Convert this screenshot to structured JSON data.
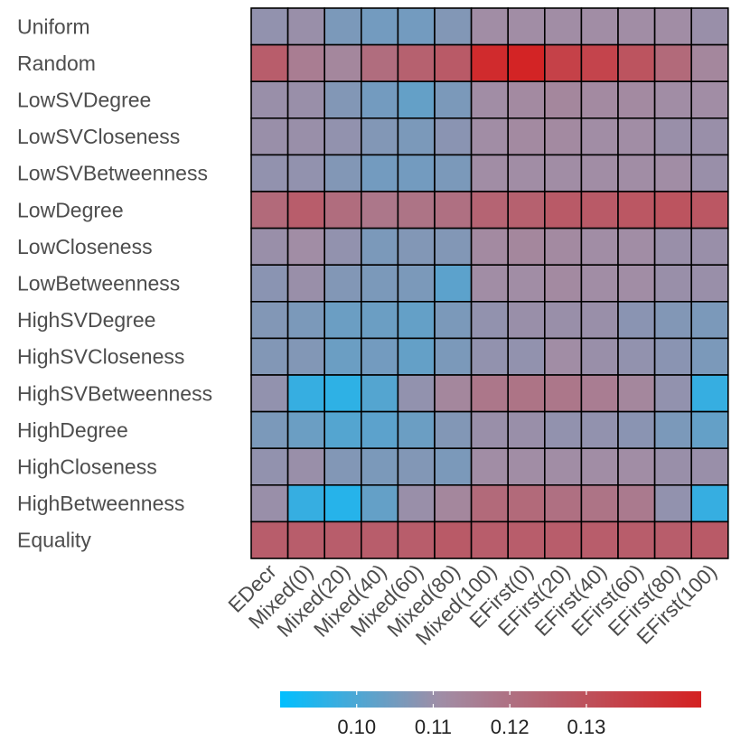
{
  "chart_data": {
    "type": "heatmap",
    "rows": [
      "Uniform",
      "Random",
      "LowSVDegree",
      "LowSVCloseness",
      "LowSVBetweenness",
      "LowDegree",
      "LowCloseness",
      "LowBetweenness",
      "HighSVDegree",
      "HighSVCloseness",
      "HighSVBetweenness",
      "HighDegree",
      "HighCloseness",
      "HighBetweenness",
      "Equality"
    ],
    "columns": [
      "EDecr",
      "Mixed(0)",
      "Mixed(20)",
      "Mixed(40)",
      "Mixed(60)",
      "Mixed(80)",
      "Mixed(100)",
      "EFirst(0)",
      "EFirst(20)",
      "EFirst(40)",
      "EFirst(60)",
      "EFirst(80)",
      "EFirst(100)"
    ],
    "values": [
      [
        0.109,
        0.11,
        0.106,
        0.105,
        0.105,
        0.107,
        0.111,
        0.111,
        0.111,
        0.111,
        0.111,
        0.111,
        0.11
      ],
      [
        0.126,
        0.116,
        0.113,
        0.121,
        0.125,
        0.127,
        0.142,
        0.144,
        0.135,
        0.134,
        0.129,
        0.122,
        0.113
      ],
      [
        0.11,
        0.11,
        0.107,
        0.105,
        0.103,
        0.106,
        0.111,
        0.112,
        0.113,
        0.112,
        0.112,
        0.111,
        0.111
      ],
      [
        0.11,
        0.11,
        0.109,
        0.107,
        0.106,
        0.108,
        0.111,
        0.112,
        0.112,
        0.111,
        0.111,
        0.11,
        0.11
      ],
      [
        0.109,
        0.109,
        0.107,
        0.105,
        0.105,
        0.106,
        0.111,
        0.111,
        0.111,
        0.111,
        0.111,
        0.111,
        0.11
      ],
      [
        0.122,
        0.126,
        0.121,
        0.118,
        0.119,
        0.12,
        0.124,
        0.125,
        0.127,
        0.127,
        0.128,
        0.129,
        0.128
      ],
      [
        0.11,
        0.111,
        0.109,
        0.106,
        0.107,
        0.107,
        0.112,
        0.113,
        0.112,
        0.111,
        0.111,
        0.11,
        0.11
      ],
      [
        0.108,
        0.11,
        0.107,
        0.106,
        0.106,
        0.102,
        0.111,
        0.111,
        0.112,
        0.111,
        0.111,
        0.11,
        0.11
      ],
      [
        0.107,
        0.106,
        0.104,
        0.104,
        0.103,
        0.106,
        0.109,
        0.11,
        0.11,
        0.11,
        0.108,
        0.107,
        0.106
      ],
      [
        0.107,
        0.107,
        0.104,
        0.105,
        0.103,
        0.106,
        0.109,
        0.109,
        0.111,
        0.11,
        0.109,
        0.108,
        0.106
      ],
      [
        0.109,
        0.097,
        0.096,
        0.101,
        0.109,
        0.113,
        0.118,
        0.119,
        0.118,
        0.116,
        0.113,
        0.109,
        0.097
      ],
      [
        0.106,
        0.104,
        0.101,
        0.102,
        0.104,
        0.107,
        0.11,
        0.11,
        0.109,
        0.109,
        0.108,
        0.106,
        0.103
      ],
      [
        0.109,
        0.11,
        0.107,
        0.106,
        0.107,
        0.106,
        0.111,
        0.111,
        0.111,
        0.111,
        0.111,
        0.11,
        0.11
      ],
      [
        0.11,
        0.097,
        0.095,
        0.103,
        0.11,
        0.113,
        0.122,
        0.122,
        0.12,
        0.119,
        0.117,
        0.109,
        0.097
      ],
      [
        0.126,
        0.126,
        0.126,
        0.126,
        0.126,
        0.127,
        0.126,
        0.126,
        0.126,
        0.126,
        0.126,
        0.126,
        0.127
      ]
    ],
    "color_scale": {
      "min": 0.09,
      "mid": 0.111,
      "max": 0.145,
      "low_color": "#00BFFF",
      "mid_color": "#A18DA5",
      "high_color": "#D42121"
    },
    "colorbar": {
      "position": "bottom",
      "ticks": [
        0.1,
        0.11,
        0.12,
        0.13
      ],
      "tick_labels": [
        "0.10",
        "0.11",
        "0.12",
        "0.13"
      ]
    },
    "title": "",
    "xlabel": "",
    "ylabel": "",
    "grid": false
  }
}
